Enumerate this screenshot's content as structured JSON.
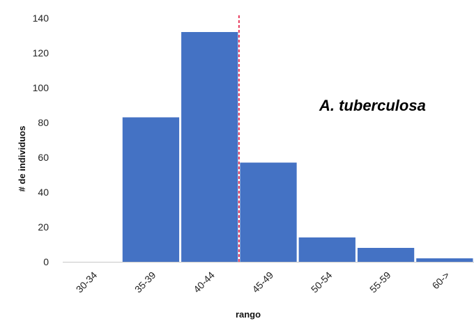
{
  "chart_data": {
    "type": "bar",
    "categories": [
      "30-34",
      "35-39",
      "40-44",
      "45-49",
      "50-54",
      "55-59",
      "60->"
    ],
    "values": [
      0,
      83,
      132,
      57,
      14,
      8,
      2
    ],
    "xlabel": "rango",
    "ylabel": "# de individuos",
    "ylim": [
      0,
      140
    ],
    "yticks": [
      0,
      20,
      40,
      60,
      80,
      100,
      120,
      140
    ],
    "annotation": "A. tuberculosa",
    "reference_line": {
      "x": 44.5,
      "style": "dashed",
      "color": "#e8375a"
    },
    "bar_color": "#4472c4",
    "grid": false,
    "legend": "none"
  }
}
